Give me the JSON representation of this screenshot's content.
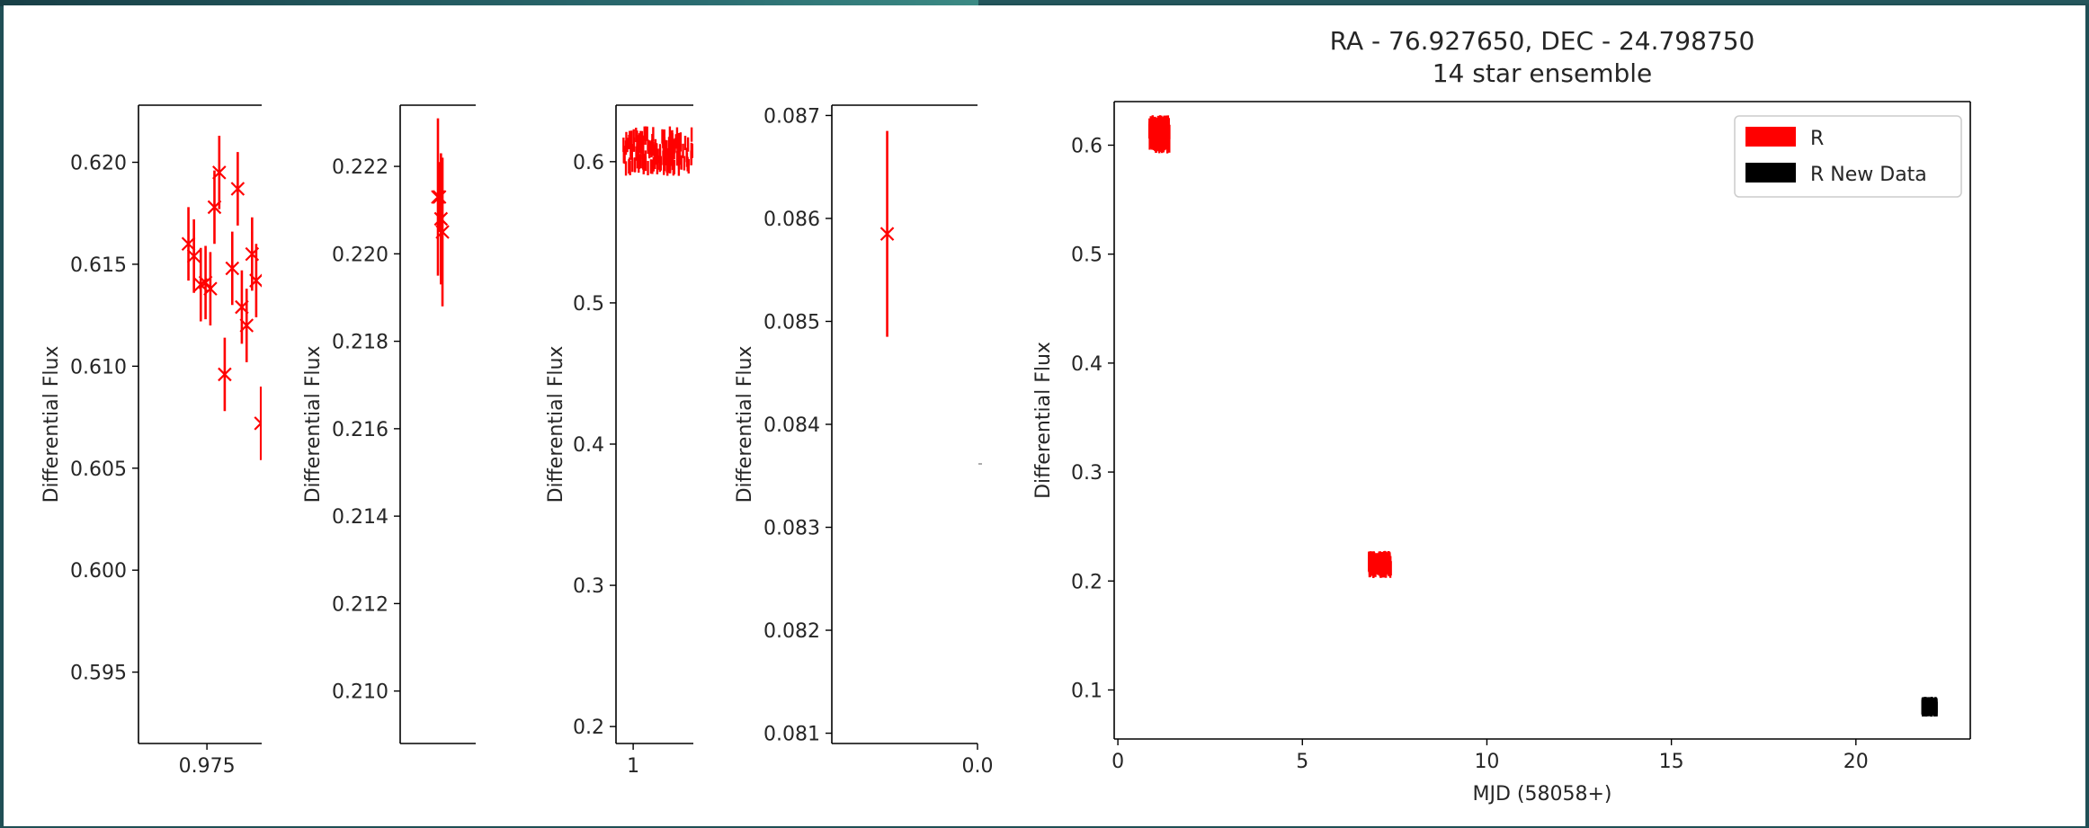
{
  "window": {
    "accent": "#1f4f55"
  },
  "chart_data": [
    {
      "type": "scatter",
      "ylabel": "Differential Flux",
      "xlim": [
        0.965,
        0.983
      ],
      "ylim": [
        0.5915,
        0.6228
      ],
      "xticks": [
        0.975
      ],
      "xticklabels": [
        "0.975"
      ],
      "yticks": [
        0.595,
        0.6,
        0.605,
        0.61,
        0.615,
        0.62
      ],
      "yticklabels": [
        "0.595",
        "0.600",
        "0.605",
        "0.610",
        "0.615",
        "0.620"
      ],
      "series": [
        {
          "color": "#ff0000",
          "x": [
            0.9723,
            0.9731,
            0.9741,
            0.9748,
            0.9755,
            0.9761,
            0.9768,
            0.9776,
            0.9787,
            0.9795,
            0.9801,
            0.9808,
            0.9816,
            0.9822,
            0.9829
          ],
          "y": [
            0.616,
            0.6154,
            0.614,
            0.6141,
            0.6138,
            0.6178,
            0.6195,
            0.6096,
            0.6148,
            0.6187,
            0.6129,
            0.612,
            0.6155,
            0.6142,
            0.6072
          ],
          "yerr": [
            0.0018,
            0.0018,
            0.0018,
            0.0018,
            0.0018,
            0.0018,
            0.0018,
            0.0018,
            0.0018,
            0.0018,
            0.0018,
            0.0018,
            0.0018,
            0.0018,
            0.0018
          ]
        }
      ]
    },
    {
      "type": "scatter",
      "ylabel": "Differential Flux",
      "xlim": [
        0,
        1
      ],
      "ylim": [
        0.2088,
        0.2234
      ],
      "xticks": [],
      "xticklabels": [],
      "yticks": [
        0.21,
        0.212,
        0.214,
        0.216,
        0.218,
        0.22,
        0.222
      ],
      "yticklabels": [
        "0.210",
        "0.212",
        "0.214",
        "0.216",
        "0.218",
        "0.220",
        "0.222"
      ],
      "series": [
        {
          "color": "#ff0000",
          "x": [
            0.5,
            0.52,
            0.54,
            0.56
          ],
          "y": [
            0.2213,
            0.2213,
            0.2208,
            0.2205
          ],
          "yerr": [
            0.0018,
            0.0008,
            0.0015,
            0.0017
          ]
        }
      ]
    },
    {
      "type": "scatter",
      "ylabel": "Differential Flux",
      "xlim": [
        0.9,
        1.35
      ],
      "ylim": [
        0.188,
        0.64
      ],
      "xticks": [
        1
      ],
      "xticklabels": [
        "1"
      ],
      "yticks": [
        0.2,
        0.3,
        0.4,
        0.5,
        0.6
      ],
      "yticklabels": [
        "0.2",
        "0.3",
        "0.4",
        "0.5",
        "0.6"
      ],
      "cluster": {
        "x": [
          0.94,
          1.35
        ],
        "y": [
          0.595,
          0.62
        ],
        "color": "#ff0000"
      }
    },
    {
      "type": "scatter",
      "ylabel": "Differential Flux",
      "xlim": [
        -0.02,
        0.0
      ],
      "ylim": [
        0.0809,
        0.0871
      ],
      "xticks": [
        0.0
      ],
      "xticklabels": [
        "0.0"
      ],
      "yticks": [
        0.081,
        0.082,
        0.083,
        0.084,
        0.085,
        0.086,
        0.087
      ],
      "yticklabels": [
        "0.081",
        "0.082",
        "0.083",
        "0.084",
        "0.085",
        "0.086",
        "0.087"
      ],
      "series": [
        {
          "color": "#ff0000",
          "x": [
            -0.0124
          ],
          "y": [
            0.08585
          ],
          "yerr": [
            0.001
          ]
        }
      ]
    },
    {
      "type": "scatter",
      "title": "RA - 76.927650, DEC - 24.798750",
      "subtitle": "14 star ensemble",
      "xlabel": "MJD (58058+)",
      "ylabel": "Differential Flux",
      "xlim": [
        -0.1,
        23.1
      ],
      "ylim": [
        0.055,
        0.64
      ],
      "xticks": [
        0,
        5,
        10,
        15,
        20
      ],
      "xticklabels": [
        "0",
        "5",
        "10",
        "15",
        "20"
      ],
      "yticks": [
        0.1,
        0.2,
        0.3,
        0.4,
        0.5,
        0.6
      ],
      "yticklabels": [
        "0.1",
        "0.2",
        "0.3",
        "0.4",
        "0.5",
        "0.6"
      ],
      "legend": {
        "position": "top-right",
        "entries": [
          {
            "label": "R",
            "color": "#ff0000"
          },
          {
            "label": "R New Data",
            "color": "#000000"
          }
        ]
      },
      "clusters": [
        {
          "series": "R",
          "x": [
            0.85,
            1.4
          ],
          "y": [
            0.599,
            0.621
          ],
          "color": "#ff0000"
        },
        {
          "series": "R",
          "x": [
            6.8,
            7.4
          ],
          "y": [
            0.209,
            0.221
          ],
          "color": "#ff0000"
        },
        {
          "series": "R New Data",
          "x": [
            21.8,
            22.2
          ],
          "y": [
            0.082,
            0.087
          ],
          "color": "#000000"
        }
      ]
    }
  ]
}
